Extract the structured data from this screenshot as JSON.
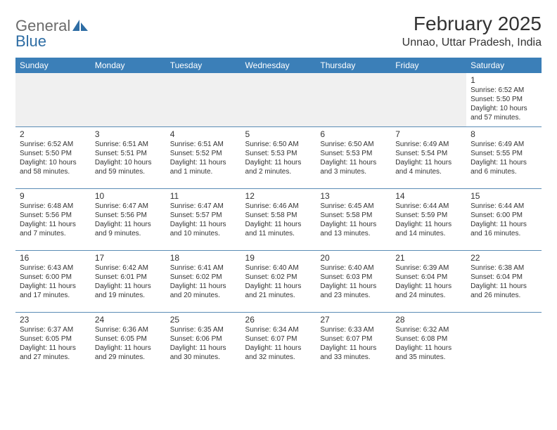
{
  "logo": {
    "general": "General",
    "blue": "Blue"
  },
  "header": {
    "month_title": "February 2025",
    "location": "Unnao, Uttar Pradesh, India"
  },
  "colors": {
    "header_bg": "#3b7fb8",
    "header_text": "#ffffff",
    "row_divider": "#5a8cb5",
    "empty_bg": "#f0f0f0",
    "text": "#333333",
    "logo_gray": "#6b6b6b",
    "logo_blue": "#2e6da4"
  },
  "typography": {
    "title_fontsize": 28,
    "location_fontsize": 16,
    "dayheader_fontsize": 12,
    "daynum_fontsize": 12,
    "body_fontsize": 10
  },
  "days_of_week": [
    "Sunday",
    "Monday",
    "Tuesday",
    "Wednesday",
    "Thursday",
    "Friday",
    "Saturday"
  ],
  "weeks": [
    [
      null,
      null,
      null,
      null,
      null,
      null,
      {
        "n": "1",
        "sunrise": "6:52 AM",
        "sunset": "5:50 PM",
        "daylight": "10 hours and 57 minutes."
      }
    ],
    [
      {
        "n": "2",
        "sunrise": "6:52 AM",
        "sunset": "5:50 PM",
        "daylight": "10 hours and 58 minutes."
      },
      {
        "n": "3",
        "sunrise": "6:51 AM",
        "sunset": "5:51 PM",
        "daylight": "10 hours and 59 minutes."
      },
      {
        "n": "4",
        "sunrise": "6:51 AM",
        "sunset": "5:52 PM",
        "daylight": "11 hours and 1 minute."
      },
      {
        "n": "5",
        "sunrise": "6:50 AM",
        "sunset": "5:53 PM",
        "daylight": "11 hours and 2 minutes."
      },
      {
        "n": "6",
        "sunrise": "6:50 AM",
        "sunset": "5:53 PM",
        "daylight": "11 hours and 3 minutes."
      },
      {
        "n": "7",
        "sunrise": "6:49 AM",
        "sunset": "5:54 PM",
        "daylight": "11 hours and 4 minutes."
      },
      {
        "n": "8",
        "sunrise": "6:49 AM",
        "sunset": "5:55 PM",
        "daylight": "11 hours and 6 minutes."
      }
    ],
    [
      {
        "n": "9",
        "sunrise": "6:48 AM",
        "sunset": "5:56 PM",
        "daylight": "11 hours and 7 minutes."
      },
      {
        "n": "10",
        "sunrise": "6:47 AM",
        "sunset": "5:56 PM",
        "daylight": "11 hours and 9 minutes."
      },
      {
        "n": "11",
        "sunrise": "6:47 AM",
        "sunset": "5:57 PM",
        "daylight": "11 hours and 10 minutes."
      },
      {
        "n": "12",
        "sunrise": "6:46 AM",
        "sunset": "5:58 PM",
        "daylight": "11 hours and 11 minutes."
      },
      {
        "n": "13",
        "sunrise": "6:45 AM",
        "sunset": "5:58 PM",
        "daylight": "11 hours and 13 minutes."
      },
      {
        "n": "14",
        "sunrise": "6:44 AM",
        "sunset": "5:59 PM",
        "daylight": "11 hours and 14 minutes."
      },
      {
        "n": "15",
        "sunrise": "6:44 AM",
        "sunset": "6:00 PM",
        "daylight": "11 hours and 16 minutes."
      }
    ],
    [
      {
        "n": "16",
        "sunrise": "6:43 AM",
        "sunset": "6:00 PM",
        "daylight": "11 hours and 17 minutes."
      },
      {
        "n": "17",
        "sunrise": "6:42 AM",
        "sunset": "6:01 PM",
        "daylight": "11 hours and 19 minutes."
      },
      {
        "n": "18",
        "sunrise": "6:41 AM",
        "sunset": "6:02 PM",
        "daylight": "11 hours and 20 minutes."
      },
      {
        "n": "19",
        "sunrise": "6:40 AM",
        "sunset": "6:02 PM",
        "daylight": "11 hours and 21 minutes."
      },
      {
        "n": "20",
        "sunrise": "6:40 AM",
        "sunset": "6:03 PM",
        "daylight": "11 hours and 23 minutes."
      },
      {
        "n": "21",
        "sunrise": "6:39 AM",
        "sunset": "6:04 PM",
        "daylight": "11 hours and 24 minutes."
      },
      {
        "n": "22",
        "sunrise": "6:38 AM",
        "sunset": "6:04 PM",
        "daylight": "11 hours and 26 minutes."
      }
    ],
    [
      {
        "n": "23",
        "sunrise": "6:37 AM",
        "sunset": "6:05 PM",
        "daylight": "11 hours and 27 minutes."
      },
      {
        "n": "24",
        "sunrise": "6:36 AM",
        "sunset": "6:05 PM",
        "daylight": "11 hours and 29 minutes."
      },
      {
        "n": "25",
        "sunrise": "6:35 AM",
        "sunset": "6:06 PM",
        "daylight": "11 hours and 30 minutes."
      },
      {
        "n": "26",
        "sunrise": "6:34 AM",
        "sunset": "6:07 PM",
        "daylight": "11 hours and 32 minutes."
      },
      {
        "n": "27",
        "sunrise": "6:33 AM",
        "sunset": "6:07 PM",
        "daylight": "11 hours and 33 minutes."
      },
      {
        "n": "28",
        "sunrise": "6:32 AM",
        "sunset": "6:08 PM",
        "daylight": "11 hours and 35 minutes."
      },
      null
    ]
  ],
  "labels": {
    "sunrise": "Sunrise:",
    "sunset": "Sunset:",
    "daylight": "Daylight:"
  }
}
